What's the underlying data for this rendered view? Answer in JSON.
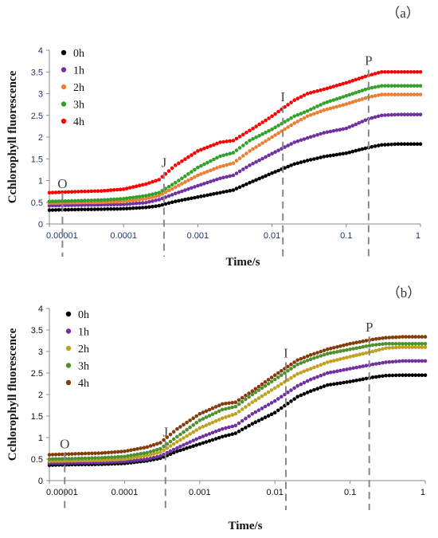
{
  "chart_data": [
    {
      "type": "scatter",
      "panel_label": "（a）",
      "xscale": "log",
      "xlim": [
        1e-05,
        1
      ],
      "ylim": [
        0,
        4
      ],
      "xlabel": "Time/s",
      "ylabel": "Cchlorophyll fluorescence",
      "x_ticks": [
        "0.00001",
        "0.0001",
        "0.001",
        "0.01",
        "0.1",
        "1"
      ],
      "y_ticks": [
        "0",
        "0.5",
        "1",
        "1.5",
        "2",
        "2.5",
        "3",
        "3.5",
        "4"
      ],
      "legend_position": "top-left",
      "phase_markers": [
        {
          "label": "O",
          "x": 1.5e-05
        },
        {
          "label": "J",
          "x": 0.00035
        },
        {
          "label": "I",
          "x": 0.014
        },
        {
          "label": "P",
          "x": 0.2
        }
      ],
      "series": [
        {
          "name": "0h",
          "color": "#000000",
          "x": [
            1e-05,
            2e-05,
            5e-05,
            0.0001,
            0.0002,
            0.0003,
            0.0005,
            0.001,
            0.002,
            0.003,
            0.005,
            0.01,
            0.02,
            0.03,
            0.05,
            0.1,
            0.2,
            0.3,
            0.5,
            1
          ],
          "y": [
            0.32,
            0.33,
            0.34,
            0.35,
            0.38,
            0.42,
            0.52,
            0.62,
            0.72,
            0.78,
            0.95,
            1.17,
            1.38,
            1.46,
            1.55,
            1.63,
            1.76,
            1.82,
            1.84,
            1.84
          ]
        },
        {
          "name": "1h",
          "color": "#7030a0",
          "x": [
            1e-05,
            2e-05,
            5e-05,
            0.0001,
            0.0002,
            0.0003,
            0.0005,
            0.001,
            0.002,
            0.003,
            0.005,
            0.01,
            0.02,
            0.03,
            0.05,
            0.1,
            0.2,
            0.3,
            0.5,
            1
          ],
          "y": [
            0.42,
            0.43,
            0.44,
            0.45,
            0.49,
            0.56,
            0.7,
            0.88,
            1.05,
            1.12,
            1.35,
            1.62,
            1.88,
            1.98,
            2.1,
            2.2,
            2.42,
            2.5,
            2.52,
            2.52
          ]
        },
        {
          "name": "2h",
          "color": "#ed7d31",
          "x": [
            1e-05,
            2e-05,
            5e-05,
            0.0001,
            0.0002,
            0.0003,
            0.0005,
            0.001,
            0.002,
            0.003,
            0.005,
            0.01,
            0.02,
            0.03,
            0.05,
            0.1,
            0.2,
            0.3,
            0.5,
            1
          ],
          "y": [
            0.48,
            0.49,
            0.5,
            0.52,
            0.58,
            0.65,
            0.85,
            1.12,
            1.32,
            1.4,
            1.68,
            2.0,
            2.32,
            2.48,
            2.62,
            2.76,
            2.92,
            2.98,
            2.98,
            2.98
          ]
        },
        {
          "name": "3h",
          "color": "#33a02c",
          "x": [
            1e-05,
            2e-05,
            5e-05,
            0.0001,
            0.0002,
            0.0003,
            0.0005,
            0.001,
            0.002,
            0.003,
            0.005,
            0.01,
            0.02,
            0.03,
            0.05,
            0.1,
            0.2,
            0.3,
            0.5,
            1
          ],
          "y": [
            0.52,
            0.53,
            0.55,
            0.58,
            0.65,
            0.72,
            0.95,
            1.3,
            1.56,
            1.64,
            1.92,
            2.18,
            2.48,
            2.6,
            2.78,
            2.95,
            3.12,
            3.18,
            3.18,
            3.18
          ]
        },
        {
          "name": "4h",
          "color": "#ff0000",
          "x": [
            1e-05,
            2e-05,
            5e-05,
            0.0001,
            0.0002,
            0.0003,
            0.0005,
            0.001,
            0.002,
            0.003,
            0.005,
            0.01,
            0.02,
            0.03,
            0.05,
            0.1,
            0.2,
            0.3,
            0.5,
            1
          ],
          "y": [
            0.72,
            0.74,
            0.76,
            0.8,
            0.92,
            1.02,
            1.35,
            1.68,
            1.88,
            1.92,
            2.15,
            2.48,
            2.85,
            3.0,
            3.1,
            3.25,
            3.42,
            3.5,
            3.5,
            3.5
          ]
        }
      ]
    },
    {
      "type": "scatter",
      "panel_label": "（b）",
      "xscale": "log",
      "xlim": [
        1e-05,
        1
      ],
      "ylim": [
        0,
        4
      ],
      "xlabel": "Time/s",
      "ylabel": "Cchlorophyll fluorescence",
      "x_ticks": [
        "0.00001",
        "0.0001",
        "0.001",
        "0.01",
        "0.1",
        "1"
      ],
      "y_ticks": [
        "0",
        "0.5",
        "1",
        "1.5",
        "2",
        "2.5",
        "3",
        "3.5",
        "4"
      ],
      "legend_position": "top-left",
      "phase_markers": [
        {
          "label": "O",
          "x": 1.6e-05
        },
        {
          "label": "J",
          "x": 0.00035
        },
        {
          "label": "I",
          "x": 0.014
        },
        {
          "label": "P",
          "x": 0.18
        }
      ],
      "series": [
        {
          "name": "0h",
          "color": "#000000",
          "x": [
            1e-05,
            2e-05,
            5e-05,
            0.0001,
            0.0002,
            0.0003,
            0.0005,
            0.001,
            0.002,
            0.003,
            0.005,
            0.01,
            0.02,
            0.03,
            0.05,
            0.1,
            0.2,
            0.3,
            0.5,
            1
          ],
          "y": [
            0.36,
            0.37,
            0.38,
            0.4,
            0.46,
            0.52,
            0.68,
            0.85,
            1.02,
            1.1,
            1.32,
            1.58,
            1.95,
            2.08,
            2.22,
            2.3,
            2.4,
            2.44,
            2.45,
            2.45
          ]
        },
        {
          "name": "1h",
          "color": "#7030a0",
          "x": [
            1e-05,
            2e-05,
            5e-05,
            0.0001,
            0.0002,
            0.0003,
            0.0005,
            0.001,
            0.002,
            0.003,
            0.005,
            0.01,
            0.02,
            0.03,
            0.05,
            0.1,
            0.2,
            0.3,
            0.5,
            1
          ],
          "y": [
            0.4,
            0.41,
            0.42,
            0.44,
            0.5,
            0.57,
            0.76,
            1.0,
            1.2,
            1.28,
            1.55,
            1.85,
            2.2,
            2.35,
            2.5,
            2.6,
            2.7,
            2.75,
            2.78,
            2.78
          ]
        },
        {
          "name": "2h",
          "color": "#bfa01f",
          "x": [
            1e-05,
            2e-05,
            5e-05,
            0.0001,
            0.0002,
            0.0003,
            0.0005,
            0.001,
            0.002,
            0.003,
            0.005,
            0.01,
            0.02,
            0.03,
            0.05,
            0.1,
            0.2,
            0.3,
            0.5,
            1
          ],
          "y": [
            0.45,
            0.46,
            0.47,
            0.5,
            0.58,
            0.66,
            0.9,
            1.22,
            1.45,
            1.55,
            1.82,
            2.15,
            2.48,
            2.6,
            2.75,
            2.88,
            3.0,
            3.08,
            3.1,
            3.1
          ]
        },
        {
          "name": "3h",
          "color": "#4e8f2f",
          "x": [
            1e-05,
            2e-05,
            5e-05,
            0.0001,
            0.0002,
            0.0003,
            0.0005,
            0.001,
            0.002,
            0.003,
            0.005,
            0.01,
            0.02,
            0.03,
            0.05,
            0.1,
            0.2,
            0.3,
            0.5,
            1
          ],
          "y": [
            0.5,
            0.51,
            0.53,
            0.56,
            0.65,
            0.74,
            1.02,
            1.4,
            1.65,
            1.72,
            2.0,
            2.35,
            2.7,
            2.82,
            2.95,
            3.05,
            3.15,
            3.18,
            3.18,
            3.18
          ]
        },
        {
          "name": "4h",
          "color": "#843c0c",
          "x": [
            1e-05,
            2e-05,
            5e-05,
            0.0001,
            0.0002,
            0.0003,
            0.0005,
            0.001,
            0.002,
            0.003,
            0.005,
            0.01,
            0.02,
            0.03,
            0.05,
            0.1,
            0.2,
            0.3,
            0.5,
            1
          ],
          "y": [
            0.6,
            0.62,
            0.64,
            0.68,
            0.78,
            0.88,
            1.2,
            1.55,
            1.78,
            1.82,
            2.08,
            2.45,
            2.8,
            2.92,
            3.05,
            3.18,
            3.28,
            3.32,
            3.34,
            3.34
          ]
        }
      ]
    }
  ]
}
